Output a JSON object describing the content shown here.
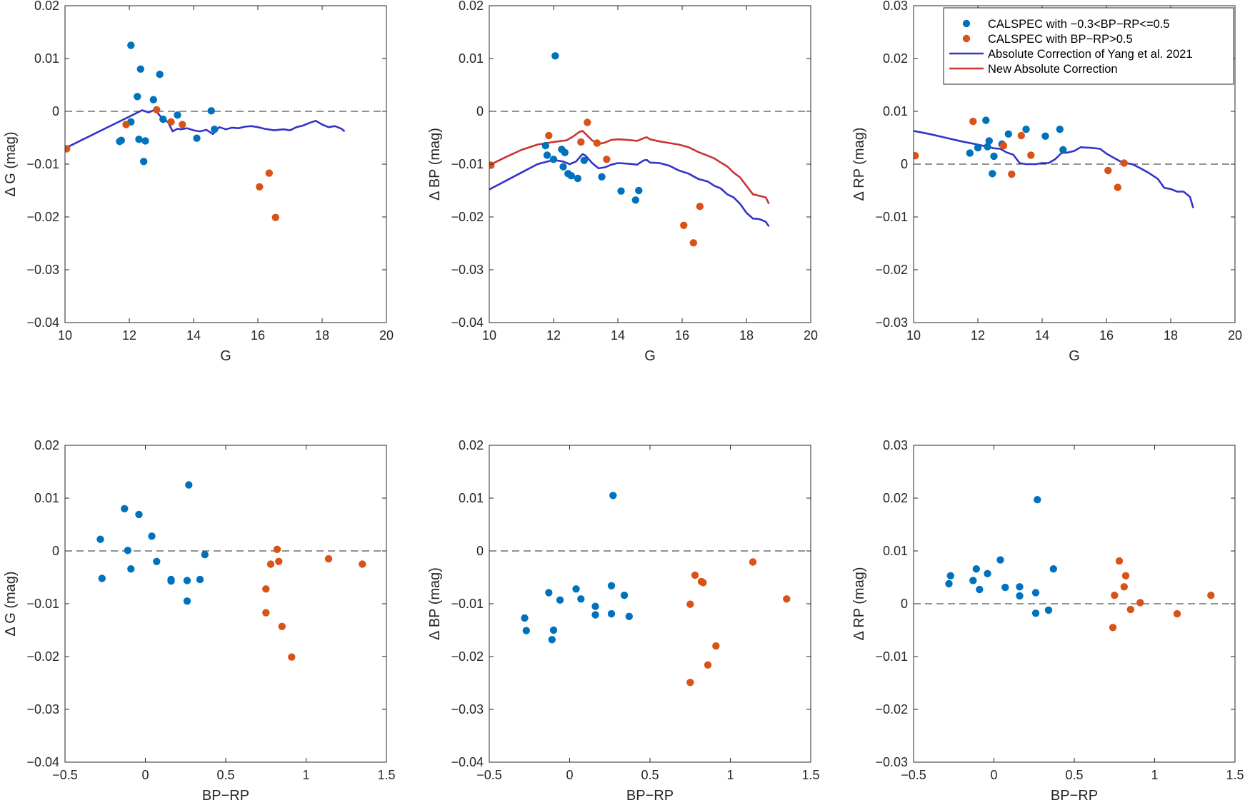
{
  "colors": {
    "blue_pts": "#0072BD",
    "orange_pts": "#D95319",
    "blue_line": "#3333CC",
    "red_line": "#CC3333",
    "axis": "#262626"
  },
  "chart_data": [
    {
      "id": "g-vs-g",
      "type": "scatter",
      "title": "",
      "xlabel": "G",
      "ylabel": "Δ G (mag)",
      "xlim": [
        10,
        20
      ],
      "ylim": [
        -0.04,
        0.02
      ],
      "xticks": [
        10,
        12,
        14,
        16,
        18,
        20
      ],
      "xtick_labels": [
        "10",
        "12",
        "14",
        "16",
        "18",
        "20"
      ],
      "yticks": [
        -0.04,
        -0.03,
        -0.02,
        -0.01,
        0,
        0.01,
        0.02
      ],
      "ytick_labels": [
        "−0.04",
        "−0.03",
        "−0.02",
        "−0.01",
        "0",
        "0.01",
        "0.02"
      ],
      "zero_line": true,
      "series": [
        {
          "name": "CALSPEC with −0.3<BP−RP<=0.5",
          "kind": "points",
          "color": "#0072BD",
          "x": [
            12.05,
            12.25,
            12.35,
            12.95,
            12.75,
            12.05,
            12.3,
            11.75,
            11.7,
            12.5,
            12.45,
            13.05,
            13.5,
            14.1,
            14.55,
            14.65
          ],
          "y": [
            0.0125,
            0.0028,
            0.008,
            0.007,
            0.0022,
            -0.002,
            -0.0053,
            -0.0055,
            -0.0057,
            -0.0056,
            -0.0095,
            -0.0015,
            -0.0007,
            -0.0051,
            0.0001,
            -0.0034
          ]
        },
        {
          "name": "CALSPEC with BP−RP>0.5",
          "kind": "points",
          "color": "#D95319",
          "x": [
            10.05,
            11.9,
            12.85,
            13.3,
            13.65,
            16.05,
            16.35,
            16.55
          ],
          "y": [
            -0.0071,
            -0.0025,
            0.0003,
            -0.002,
            -0.0025,
            -0.0143,
            -0.0117,
            -0.0201
          ]
        },
        {
          "name": "Absolute Correction of Yang et al. 2021",
          "kind": "line",
          "color": "#3333CC",
          "x": [
            10.0,
            10.5,
            11.0,
            11.5,
            12.0,
            12.4,
            12.6,
            12.8,
            12.95,
            13.05,
            13.2,
            13.35,
            13.5,
            13.6,
            13.8,
            14.0,
            14.2,
            14.4,
            14.6,
            14.8,
            15.0,
            15.2,
            15.4,
            15.6,
            15.8,
            16.0,
            16.2,
            16.5,
            16.8,
            17.0,
            17.2,
            17.4,
            17.6,
            17.8,
            18.0,
            18.2,
            18.4,
            18.6,
            18.7
          ],
          "y": [
            -0.007,
            -0.0055,
            -0.004,
            -0.0025,
            -0.001,
            0.0002,
            -0.0002,
            0.0003,
            -0.0008,
            -0.0015,
            -0.002,
            -0.0038,
            -0.0033,
            -0.0034,
            -0.0032,
            -0.0036,
            -0.0038,
            -0.0035,
            -0.0043,
            -0.003,
            -0.0034,
            -0.0031,
            -0.0032,
            -0.0029,
            -0.0028,
            -0.003,
            -0.0033,
            -0.0036,
            -0.0034,
            -0.0036,
            -0.003,
            -0.0027,
            -0.0022,
            -0.0018,
            -0.0025,
            -0.003,
            -0.0028,
            -0.0033,
            -0.0038
          ]
        }
      ]
    },
    {
      "id": "bp-vs-g",
      "type": "scatter",
      "title": "",
      "xlabel": "G",
      "ylabel": "Δ BP (mag)",
      "xlim": [
        10,
        20
      ],
      "ylim": [
        -0.04,
        0.02
      ],
      "xticks": [
        10,
        12,
        14,
        16,
        18,
        20
      ],
      "xtick_labels": [
        "10",
        "12",
        "14",
        "16",
        "18",
        "20"
      ],
      "yticks": [
        -0.04,
        -0.03,
        -0.02,
        -0.01,
        0,
        0.01,
        0.02
      ],
      "ytick_labels": [
        "−0.04",
        "−0.03",
        "−0.02",
        "−0.01",
        "0",
        "0.01",
        "0.02"
      ],
      "zero_line": true,
      "series": [
        {
          "name": "CALSPEC with −0.3<BP−RP<=0.5",
          "kind": "points",
          "color": "#0072BD",
          "x": [
            12.05,
            11.75,
            11.8,
            12.0,
            12.25,
            12.35,
            12.3,
            12.45,
            12.55,
            12.75,
            12.95,
            13.5,
            14.1,
            14.55,
            14.65
          ],
          "y": [
            0.0105,
            -0.0065,
            -0.0083,
            -0.0091,
            -0.0072,
            -0.0078,
            -0.0105,
            -0.0118,
            -0.0122,
            -0.0127,
            -0.0093,
            -0.0124,
            -0.0151,
            -0.0168,
            -0.015
          ]
        },
        {
          "name": "CALSPEC with BP−RP>0.5",
          "kind": "points",
          "color": "#D95319",
          "x": [
            10.05,
            11.85,
            12.85,
            13.05,
            13.35,
            13.65,
            16.05,
            16.35,
            16.55
          ],
          "y": [
            -0.0102,
            -0.0046,
            -0.0058,
            -0.0021,
            -0.006,
            -0.0091,
            -0.0216,
            -0.0249,
            -0.018
          ]
        },
        {
          "name": "Absolute Correction of Yang et al. 2021",
          "kind": "line",
          "color": "#3333CC",
          "x": [
            10.0,
            10.5,
            11.0,
            11.5,
            12.0,
            12.3,
            12.5,
            12.7,
            12.9,
            13.0,
            13.2,
            13.4,
            13.6,
            13.8,
            14.0,
            14.3,
            14.6,
            14.8,
            14.9,
            15.0,
            15.3,
            15.6,
            15.9,
            16.2,
            16.5,
            16.8,
            17.0,
            17.2,
            17.4,
            17.6,
            17.8,
            18.0,
            18.2,
            18.4,
            18.6,
            18.7
          ],
          "y": [
            -0.0148,
            -0.0132,
            -0.0116,
            -0.01,
            -0.0092,
            -0.0095,
            -0.01,
            -0.0095,
            -0.0081,
            -0.0084,
            -0.0098,
            -0.0108,
            -0.0106,
            -0.0101,
            -0.0098,
            -0.0099,
            -0.0101,
            -0.0093,
            -0.0092,
            -0.0097,
            -0.0098,
            -0.0103,
            -0.0112,
            -0.0118,
            -0.0128,
            -0.0133,
            -0.0141,
            -0.0146,
            -0.0157,
            -0.0163,
            -0.0175,
            -0.0192,
            -0.0203,
            -0.0204,
            -0.0209,
            -0.0218
          ]
        },
        {
          "name": "New Absolute Correction",
          "kind": "line",
          "color": "#CC3333",
          "x": [
            10.0,
            10.5,
            11.0,
            11.5,
            12.0,
            12.4,
            12.6,
            12.8,
            12.9,
            13.0,
            13.2,
            13.4,
            13.6,
            13.8,
            14.0,
            14.3,
            14.6,
            14.8,
            14.9,
            15.0,
            15.3,
            15.6,
            15.9,
            16.2,
            16.5,
            16.8,
            17.0,
            17.2,
            17.4,
            17.6,
            17.8,
            18.0,
            18.2,
            18.4,
            18.6,
            18.7
          ],
          "y": [
            -0.0102,
            -0.0087,
            -0.0073,
            -0.0063,
            -0.0058,
            -0.0055,
            -0.0048,
            -0.0039,
            -0.0037,
            -0.0043,
            -0.0055,
            -0.0062,
            -0.0059,
            -0.0054,
            -0.0053,
            -0.0054,
            -0.0056,
            -0.0051,
            -0.0049,
            -0.0053,
            -0.0057,
            -0.006,
            -0.0063,
            -0.0068,
            -0.0077,
            -0.0084,
            -0.0089,
            -0.0097,
            -0.0104,
            -0.0116,
            -0.0125,
            -0.0141,
            -0.0157,
            -0.016,
            -0.0163,
            -0.0175
          ]
        }
      ]
    },
    {
      "id": "rp-vs-g",
      "type": "scatter",
      "title": "",
      "xlabel": "G",
      "ylabel": "Δ RP (mag)",
      "xlim": [
        10,
        20
      ],
      "ylim": [
        -0.03,
        0.03
      ],
      "xticks": [
        10,
        12,
        14,
        16,
        18,
        20
      ],
      "xtick_labels": [
        "10",
        "12",
        "14",
        "16",
        "18",
        "20"
      ],
      "yticks": [
        -0.03,
        -0.02,
        -0.01,
        0,
        0.01,
        0.02,
        0.03
      ],
      "ytick_labels": [
        "−0.03",
        "−0.02",
        "−0.01",
        "0",
        "0.01",
        "0.02",
        "0.03"
      ],
      "zero_line": true,
      "legend_position": "top-right",
      "legend": [
        {
          "label": "CALSPEC with −0.3<BP−RP<=0.5",
          "kind": "points",
          "color": "#0072BD"
        },
        {
          "label": "CALSPEC with BP−RP>0.5",
          "kind": "points",
          "color": "#D95319"
        },
        {
          "label": "Absolute Correction of Yang et al. 2021",
          "kind": "line",
          "color": "#3333CC"
        },
        {
          "label": "New Absolute Correction",
          "kind": "line",
          "color": "#CC3333"
        }
      ],
      "series": [
        {
          "name": "CALSPEC with −0.3<BP−RP<=0.5",
          "kind": "points",
          "color": "#0072BD",
          "x": [
            12.25,
            11.75,
            12.0,
            12.35,
            12.3,
            12.5,
            12.45,
            12.75,
            12.95,
            13.5,
            14.1,
            14.55,
            14.65
          ],
          "y": [
            0.0083,
            0.0021,
            0.0031,
            0.0044,
            0.0033,
            0.0015,
            -0.0018,
            0.0038,
            0.0057,
            0.0066,
            0.0053,
            0.0066,
            0.0027
          ]
        },
        {
          "name": "CALSPEC with BP−RP>0.5",
          "kind": "points",
          "color": "#D95319",
          "x": [
            10.05,
            11.85,
            12.8,
            13.05,
            13.35,
            13.65,
            16.05,
            16.35,
            16.55
          ],
          "y": [
            0.0016,
            0.0081,
            0.0035,
            -0.0019,
            0.0054,
            0.0017,
            -0.0012,
            -0.0044,
            0.0002
          ]
        },
        {
          "name": "Absolute Correction of Yang et al. 2021",
          "kind": "line",
          "color": "#3333CC",
          "x": [
            10.0,
            10.5,
            11.0,
            11.5,
            12.0,
            12.5,
            12.7,
            12.9,
            13.1,
            13.3,
            13.5,
            13.8,
            14.0,
            14.2,
            14.4,
            14.6,
            14.8,
            15.0,
            15.2,
            15.5,
            15.8,
            16.0,
            16.2,
            16.5,
            16.8,
            17.0,
            17.3,
            17.6,
            17.8,
            18.0,
            18.2,
            18.4,
            18.6,
            18.7
          ],
          "y": [
            0.0063,
            0.0057,
            0.005,
            0.0043,
            0.0037,
            0.003,
            0.0029,
            0.0022,
            0.0018,
            0.0002,
            0.0,
            0.0,
            0.0002,
            0.0002,
            0.0009,
            0.0021,
            0.0022,
            0.0025,
            0.0032,
            0.0031,
            0.0029,
            0.002,
            0.0013,
            0.0003,
            0.0,
            -0.0006,
            -0.0016,
            -0.0028,
            -0.0045,
            -0.0047,
            -0.0052,
            -0.0052,
            -0.0062,
            -0.0083
          ]
        }
      ]
    },
    {
      "id": "g-vs-color",
      "type": "scatter",
      "title": "",
      "xlabel": "BP−RP",
      "ylabel": "Δ G (mag)",
      "xlim": [
        -0.5,
        1.5
      ],
      "ylim": [
        -0.04,
        0.02
      ],
      "xticks": [
        -0.5,
        0,
        0.5,
        1,
        1.5
      ],
      "xtick_labels": [
        "−0.5",
        "0",
        "0.5",
        "1",
        "1.5"
      ],
      "yticks": [
        -0.04,
        -0.03,
        -0.02,
        -0.01,
        0,
        0.01,
        0.02
      ],
      "ytick_labels": [
        "−0.04",
        "−0.03",
        "−0.02",
        "−0.01",
        "0",
        "0.01",
        "0.02"
      ],
      "zero_line": true,
      "series": [
        {
          "name": "CALSPEC with −0.3<BP−RP<=0.5",
          "kind": "points",
          "color": "#0072BD",
          "x": [
            -0.28,
            -0.27,
            -0.13,
            -0.04,
            -0.11,
            -0.09,
            0.04,
            0.07,
            0.16,
            0.16,
            0.26,
            0.26,
            0.27,
            0.34,
            0.37
          ],
          "y": [
            0.0022,
            -0.0052,
            0.008,
            0.0069,
            0.0001,
            -0.0034,
            0.0028,
            -0.002,
            -0.0054,
            -0.0057,
            -0.0056,
            -0.0095,
            0.0125,
            -0.0054,
            -0.0007
          ]
        },
        {
          "name": "CALSPEC with BP−RP>0.5",
          "kind": "points",
          "color": "#D95319",
          "x": [
            0.75,
            0.75,
            0.78,
            0.82,
            0.83,
            0.85,
            0.91,
            1.14,
            1.35
          ],
          "y": [
            -0.0072,
            -0.0117,
            -0.0025,
            0.0003,
            -0.002,
            -0.0143,
            -0.0201,
            -0.0015,
            -0.0025
          ]
        }
      ]
    },
    {
      "id": "bp-vs-color",
      "type": "scatter",
      "title": "",
      "xlabel": "BP−RP",
      "ylabel": "Δ BP (mag)",
      "xlim": [
        -0.5,
        1.5
      ],
      "ylim": [
        -0.04,
        0.02
      ],
      "xticks": [
        -0.5,
        0,
        0.5,
        1,
        1.5
      ],
      "xtick_labels": [
        "−0.5",
        "0",
        "0.5",
        "1",
        "1.5"
      ],
      "yticks": [
        -0.04,
        -0.03,
        -0.02,
        -0.01,
        0,
        0.01,
        0.02
      ],
      "ytick_labels": [
        "−0.04",
        "−0.03",
        "−0.02",
        "−0.01",
        "0",
        "0.01",
        "0.02"
      ],
      "zero_line": true,
      "series": [
        {
          "name": "CALSPEC with −0.3<BP−RP<=0.5",
          "kind": "points",
          "color": "#0072BD",
          "x": [
            -0.28,
            -0.27,
            -0.13,
            -0.11,
            -0.1,
            -0.06,
            0.04,
            0.07,
            0.16,
            0.16,
            0.26,
            0.26,
            0.27,
            0.34,
            0.37
          ],
          "y": [
            -0.0127,
            -0.0151,
            -0.0079,
            -0.0168,
            -0.015,
            -0.0093,
            -0.0072,
            -0.0091,
            -0.0105,
            -0.0121,
            -0.0066,
            -0.0119,
            0.0105,
            -0.0084,
            -0.0124
          ]
        },
        {
          "name": "CALSPEC with BP−RP>0.5",
          "kind": "points",
          "color": "#D95319",
          "x": [
            0.75,
            0.75,
            0.78,
            0.82,
            0.83,
            0.86,
            0.91,
            1.14,
            1.35
          ],
          "y": [
            -0.0101,
            -0.0249,
            -0.0046,
            -0.0058,
            -0.006,
            -0.0216,
            -0.018,
            -0.0021,
            -0.0091
          ]
        }
      ]
    },
    {
      "id": "rp-vs-color",
      "type": "scatter",
      "title": "",
      "xlabel": "BP−RP",
      "ylabel": "Δ RP (mag)",
      "xlim": [
        -0.5,
        1.5
      ],
      "ylim": [
        -0.03,
        0.03
      ],
      "xticks": [
        -0.5,
        0,
        0.5,
        1,
        1.5
      ],
      "xtick_labels": [
        "−0.5",
        "0",
        "0.5",
        "1",
        "1.5"
      ],
      "yticks": [
        -0.03,
        -0.02,
        -0.01,
        0,
        0.01,
        0.02,
        0.03
      ],
      "ytick_labels": [
        "−0.03",
        "−0.02",
        "−0.01",
        "0",
        "0.01",
        "0.02",
        "0.03"
      ],
      "zero_line": true,
      "series": [
        {
          "name": "CALSPEC with −0.3<BP−RP<=0.5",
          "kind": "points",
          "color": "#0072BD",
          "x": [
            -0.28,
            -0.27,
            -0.13,
            -0.11,
            -0.09,
            -0.04,
            0.04,
            0.07,
            0.16,
            0.16,
            0.26,
            0.26,
            0.27,
            0.34,
            0.37
          ],
          "y": [
            0.0038,
            0.0053,
            0.0044,
            0.0066,
            0.0027,
            0.0057,
            0.0083,
            0.0031,
            0.0032,
            0.0015,
            0.0021,
            -0.0018,
            0.0197,
            -0.0012,
            0.0066
          ]
        },
        {
          "name": "CALSPEC with BP−RP>0.5",
          "kind": "points",
          "color": "#D95319",
          "x": [
            0.74,
            0.75,
            0.78,
            0.81,
            0.82,
            0.85,
            0.91,
            1.14,
            1.35
          ],
          "y": [
            -0.0045,
            0.0016,
            0.0081,
            0.0032,
            0.0053,
            -0.0011,
            0.0002,
            -0.0019,
            0.0016
          ]
        }
      ]
    }
  ]
}
